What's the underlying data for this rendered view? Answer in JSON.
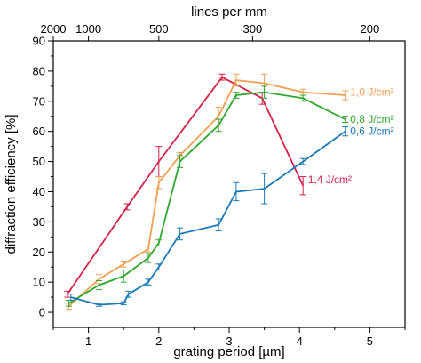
{
  "chart_data": {
    "type": "line",
    "xlabel": "grating period [µm]",
    "ylabel": "diffraction efficiency [%]",
    "top_xlabel": "lines per mm",
    "xlim": [
      0.5,
      5.5
    ],
    "ylim": [
      -5,
      90
    ],
    "x_ticks": [
      "1",
      "2",
      "3",
      "4",
      "5"
    ],
    "x_tick_values": [
      1,
      2,
      3,
      4,
      5
    ],
    "y_ticks": [
      "0",
      "10",
      "20",
      "30",
      "40",
      "50",
      "60",
      "70",
      "80",
      "90"
    ],
    "y_tick_values": [
      0,
      10,
      20,
      30,
      40,
      50,
      60,
      70,
      80,
      90
    ],
    "top_ticks": [
      "2000",
      "1000",
      "500",
      "300",
      "200"
    ],
    "top_tick_values": [
      0.5,
      1.0,
      2.0,
      3.333,
      5.0
    ],
    "series": [
      {
        "name": "1,4 J/cm²",
        "color": "#d6204a",
        "x": [
          0.7,
          1.55,
          2.0,
          2.9,
          3.47,
          4.05
        ],
        "y": [
          6,
          35,
          50,
          78,
          71,
          42
        ],
        "err": [
          1,
          1,
          5,
          1,
          2,
          3
        ]
      },
      {
        "name": "1,0 J/cm²",
        "color": "#f0a050",
        "x": [
          0.72,
          1.15,
          1.5,
          1.85,
          2.0,
          2.3,
          2.85,
          3.1,
          3.5,
          4.05,
          4.65
        ],
        "y": [
          2,
          11,
          16,
          21,
          43,
          52,
          65,
          77,
          76,
          73,
          72
        ],
        "err": [
          1,
          1.5,
          1,
          1,
          2,
          1,
          3,
          2,
          3,
          1,
          1.5
        ]
      },
      {
        "name": "0,8 J/cm²",
        "color": "#2ea82e",
        "x": [
          0.72,
          1.15,
          1.5,
          1.85,
          2.0,
          2.3,
          2.85,
          3.1,
          3.5,
          4.05,
          4.65
        ],
        "y": [
          3,
          9,
          12,
          18,
          23,
          50,
          62,
          72,
          73,
          71,
          64
        ],
        "err": [
          1,
          1.5,
          2,
          1.5,
          1,
          2,
          2,
          1,
          2,
          1,
          1
        ]
      },
      {
        "name": "0,6 J/cm²",
        "color": "#1a7ab5",
        "x": [
          0.75,
          1.15,
          1.5,
          1.57,
          1.85,
          2.0,
          2.3,
          2.85,
          3.1,
          3.5,
          4.05,
          4.65
        ],
        "y": [
          5,
          2.5,
          3,
          6,
          10,
          15,
          26,
          29,
          40,
          41,
          50,
          60
        ],
        "err": [
          1,
          0.5,
          0.5,
          1,
          1,
          1,
          2,
          2,
          3,
          5,
          1,
          1.5
        ]
      }
    ],
    "labels": [
      {
        "text": "1,0 J/cm²",
        "color": "#f0a050",
        "x": 4.72,
        "y": 73
      },
      {
        "text": "0,8 J/cm²",
        "color": "#2ea82e",
        "x": 4.72,
        "y": 64
      },
      {
        "text": "0,6 J/cm²",
        "color": "#1a7ab5",
        "x": 4.72,
        "y": 60
      },
      {
        "text": "1,4 J/cm²",
        "color": "#d6204a",
        "x": 4.12,
        "y": 44
      }
    ]
  }
}
